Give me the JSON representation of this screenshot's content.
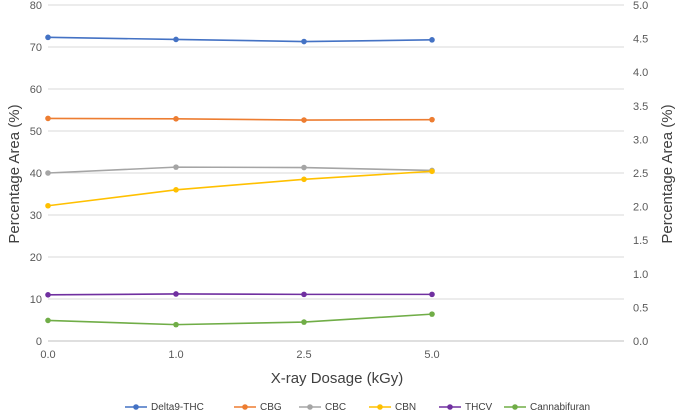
{
  "chart_data": {
    "type": "line",
    "title": "",
    "xlabel": "X-ray Dosage (kGy)",
    "ylabel": "Percentage Area (%)",
    "y2label": "Percentage Area (%)",
    "categories": [
      "0.0",
      "1.0",
      "2.5",
      "5.0"
    ],
    "ylim": [
      0,
      80
    ],
    "yticks": [
      "0",
      "10",
      "20",
      "30",
      "40",
      "50",
      "60",
      "70",
      "80"
    ],
    "y2lim": [
      0,
      5
    ],
    "y2ticks": [
      "0.0",
      "0.5",
      "1.0",
      "1.5",
      "2.0",
      "2.5",
      "3.0",
      "3.5",
      "4.0",
      "4.5",
      "5.0"
    ],
    "grid": true,
    "legend_position": "bottom",
    "series": [
      {
        "name": "Delta9-THC",
        "axis": "left",
        "color": "#4472C4",
        "values": [
          72.3,
          71.8,
          71.3,
          71.7
        ]
      },
      {
        "name": "CBG",
        "axis": "left",
        "color": "#ED7D31",
        "values": [
          53.0,
          52.9,
          52.6,
          52.7
        ]
      },
      {
        "name": "CBC",
        "axis": "left",
        "color": "#A5A5A5",
        "values": [
          40.0,
          41.4,
          41.3,
          40.6
        ]
      },
      {
        "name": "CBN",
        "axis": "left",
        "color": "#FFC000",
        "values": [
          32.2,
          36.0,
          38.5,
          40.4
        ]
      },
      {
        "name": "THCV",
        "axis": "left",
        "color": "#7030A0",
        "values": [
          11.0,
          11.2,
          11.1,
          11.1
        ]
      },
      {
        "name": "Cannabifuran",
        "axis": "left",
        "color": "#70AD47",
        "values": [
          4.9,
          3.9,
          4.5,
          6.4
        ]
      }
    ]
  }
}
